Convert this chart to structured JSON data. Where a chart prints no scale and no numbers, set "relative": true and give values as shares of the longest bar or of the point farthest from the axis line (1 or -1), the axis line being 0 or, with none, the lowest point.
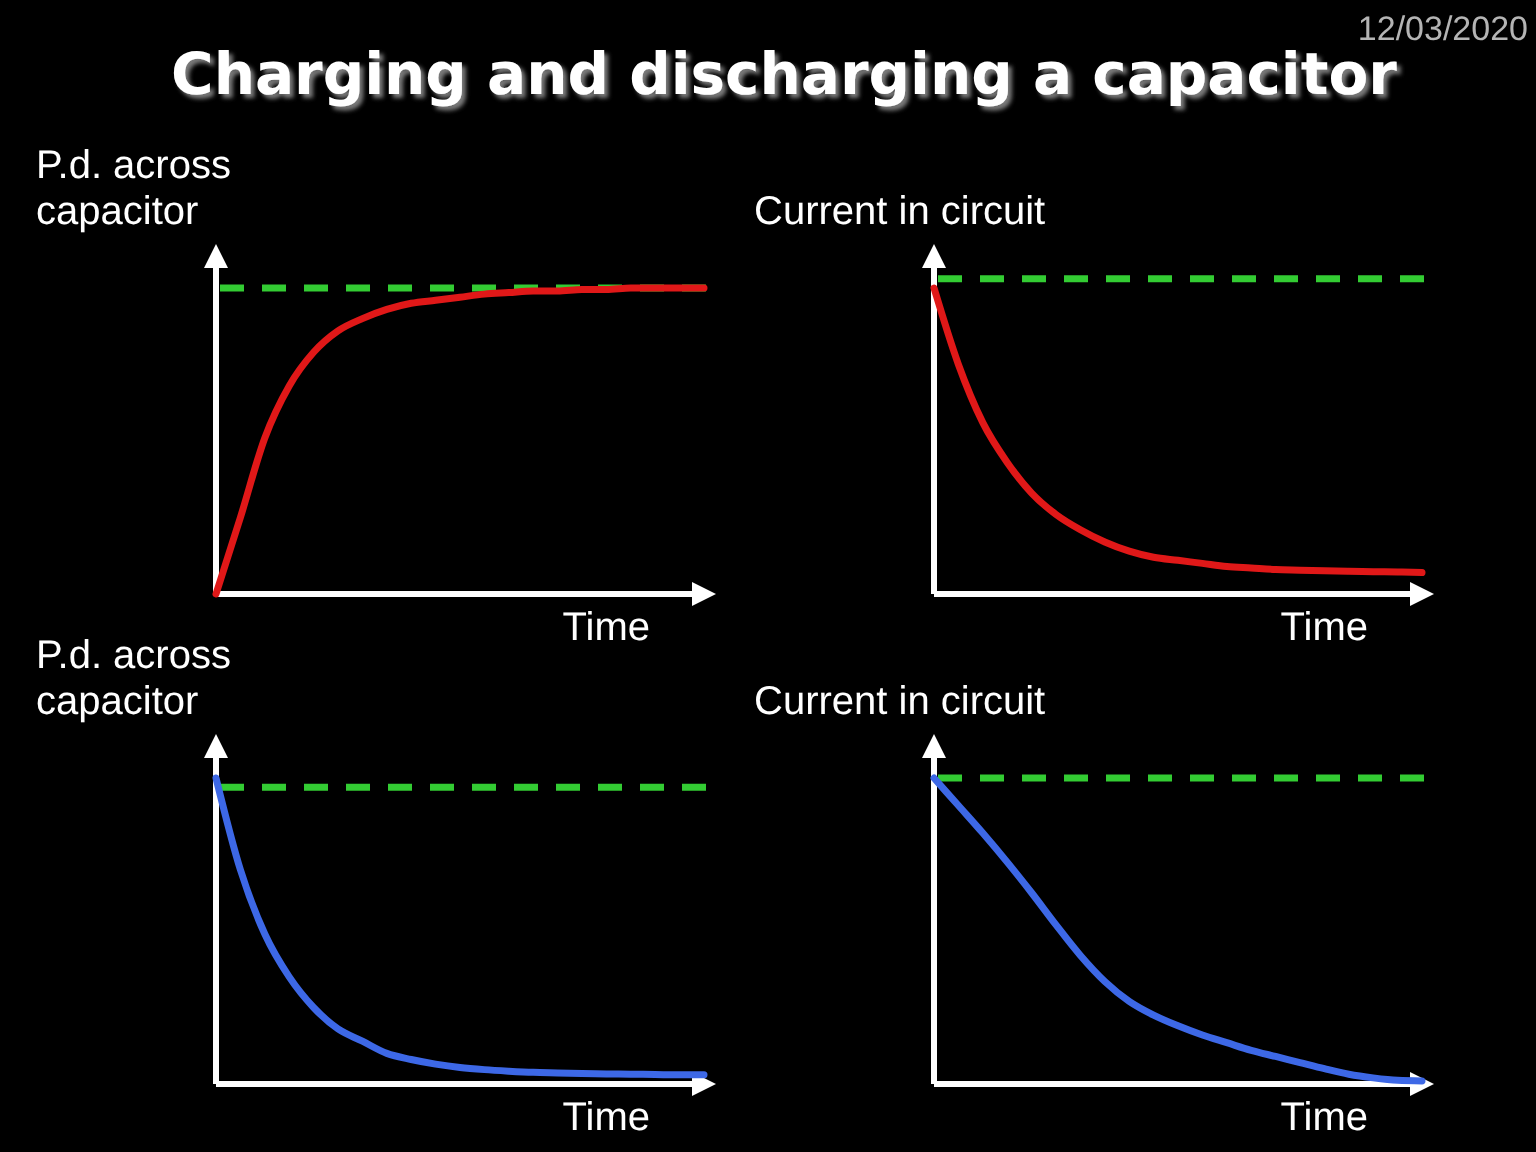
{
  "chart_data": [
    {
      "type": "line",
      "title": "Charging and discharging a capacitor",
      "annotations": [
        "12/03/2020"
      ],
      "ylabel": "P.d. across capacitor",
      "xlabel": "Time",
      "relative": true,
      "categories": [
        null,
        null,
        null,
        null,
        null,
        null,
        null,
        null,
        null,
        null,
        null,
        null,
        null,
        null,
        null,
        null,
        null,
        null,
        null,
        null,
        null
      ],
      "series": [
        {
          "color": "#e01818",
          "values": [
            0,
            0.25,
            0.51,
            0.68,
            0.79,
            0.86,
            0.9,
            0.93,
            0.95,
            0.96,
            0.97,
            0.98,
            0.985,
            0.99,
            0.99,
            0.995,
            0.995,
            1,
            1,
            1,
            1
          ]
        }
      ],
      "ref_lines": [
        {
          "axis": "y",
          "value": 1,
          "color": "#33cc33",
          "line_style": "dashed"
        }
      ]
    },
    {
      "type": "line",
      "ylabel": "Current in circuit",
      "xlabel": "Time",
      "relative": true,
      "categories": [
        null,
        null,
        null,
        null,
        null,
        null,
        null,
        null,
        null,
        null,
        null,
        null,
        null,
        null,
        null,
        null,
        null,
        null,
        null,
        null,
        null
      ],
      "series": [
        {
          "color": "#e01818",
          "values": [
            1,
            0.75,
            0.56,
            0.43,
            0.33,
            0.26,
            0.21,
            0.17,
            0.14,
            0.12,
            0.11,
            0.1,
            0.09,
            0.085,
            0.08,
            0.078,
            0.076,
            0.074,
            0.073,
            0.072,
            0.07
          ]
        }
      ],
      "ref_lines": [
        {
          "axis": "y",
          "value": 1.03,
          "color": "#33cc33",
          "line_style": "dashed"
        }
      ]
    },
    {
      "type": "line",
      "ylabel": "P.d. across capacitor",
      "xlabel": "Time",
      "relative": true,
      "categories": [
        null,
        null,
        null,
        null,
        null,
        null,
        null,
        null,
        null,
        null,
        null,
        null,
        null,
        null,
        null,
        null,
        null,
        null,
        null,
        null,
        null
      ],
      "series": [
        {
          "color": "#3d68e6",
          "values": [
            1,
            0.7,
            0.49,
            0.35,
            0.25,
            0.18,
            0.14,
            0.1,
            0.08,
            0.065,
            0.054,
            0.047,
            0.042,
            0.038,
            0.036,
            0.034,
            0.033,
            0.032,
            0.031,
            0.03,
            0.03
          ]
        }
      ],
      "ref_lines": [
        {
          "axis": "y",
          "value": 0.97,
          "color": "#33cc33",
          "line_style": "dashed"
        }
      ]
    },
    {
      "type": "line",
      "ylabel": "Current in circuit",
      "xlabel": "Time",
      "relative": true,
      "categories": [
        null,
        null,
        null,
        null,
        null,
        null,
        null,
        null,
        null,
        null,
        null,
        null,
        null,
        null,
        null,
        null,
        null,
        null,
        null,
        null,
        null
      ],
      "series": [
        {
          "color": "#3d68e6",
          "values": [
            1,
            0.91,
            0.82,
            0.725,
            0.625,
            0.52,
            0.42,
            0.335,
            0.27,
            0.225,
            0.19,
            0.16,
            0.135,
            0.11,
            0.09,
            0.07,
            0.05,
            0.032,
            0.02,
            0.012,
            0.01
          ]
        }
      ],
      "ref_lines": [
        {
          "axis": "y",
          "value": 1,
          "color": "#33cc33",
          "line_style": "dashed"
        }
      ]
    }
  ]
}
